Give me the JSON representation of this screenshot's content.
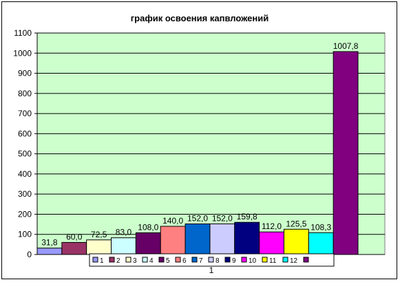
{
  "chart_data": {
    "type": "bar",
    "title": "график освоения капвложений",
    "xlabel": "",
    "ylabel": "",
    "categories": [
      "1"
    ],
    "ylim": [
      0,
      1100
    ],
    "ytick_step": 100,
    "grid": true,
    "legend_position": "bottom",
    "plot_background": "#ccffcc",
    "series": [
      {
        "name": "1",
        "values": [
          31.8
        ],
        "label": "31,8",
        "color": "#9999ff"
      },
      {
        "name": "2",
        "values": [
          60.0
        ],
        "label": "60,0",
        "color": "#993366"
      },
      {
        "name": "3",
        "values": [
          72.5
        ],
        "label": "72,5",
        "color": "#ffffcc"
      },
      {
        "name": "4",
        "values": [
          83.0
        ],
        "label": "83,0",
        "color": "#ccffff"
      },
      {
        "name": "5",
        "values": [
          108.0
        ],
        "label": "108,0",
        "color": "#660066"
      },
      {
        "name": "6",
        "values": [
          140.0
        ],
        "label": "140,0",
        "color": "#ff8080"
      },
      {
        "name": "7",
        "values": [
          152.0
        ],
        "label": "152,0",
        "color": "#0066cc"
      },
      {
        "name": "8",
        "values": [
          152.0
        ],
        "label": "152,0",
        "color": "#ccccff"
      },
      {
        "name": "9",
        "values": [
          159.8
        ],
        "label": "159,8",
        "color": "#000080"
      },
      {
        "name": "10",
        "values": [
          112.0
        ],
        "label": "112,0",
        "color": "#ff00ff"
      },
      {
        "name": "11",
        "values": [
          125.5
        ],
        "label": "125,5",
        "color": "#ffff00"
      },
      {
        "name": "12",
        "values": [
          108.3
        ],
        "label": "108,3",
        "color": "#00ffff"
      },
      {
        "name": "",
        "values": [
          1007.8
        ],
        "label": "1007,8",
        "color": "#800080"
      }
    ]
  }
}
